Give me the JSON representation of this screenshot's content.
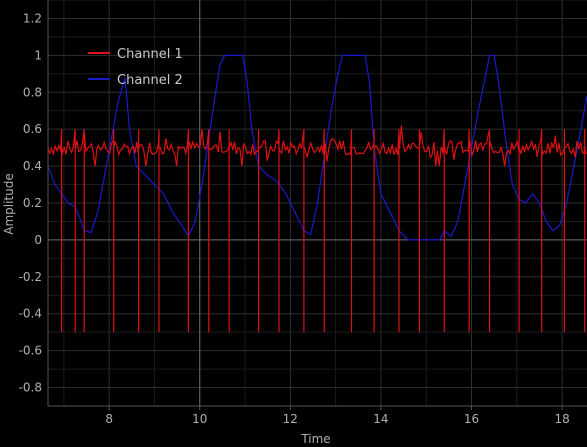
{
  "chart_data": {
    "type": "line",
    "title": "",
    "xlabel": "Time",
    "ylabel": "Amplitude",
    "xlim": [
      6.65,
      18.55
    ],
    "ylim": [
      -0.9,
      1.3
    ],
    "x_ticks": [
      8,
      10,
      12,
      14,
      16,
      18
    ],
    "x_tick_labels": [
      "8",
      "10",
      "12",
      "14",
      "16",
      "18"
    ],
    "y_ticks": [
      -0.8,
      -0.6,
      -0.4,
      -0.2,
      0,
      0.2,
      0.4,
      0.6,
      0.8,
      1,
      1.2
    ],
    "y_tick_labels": [
      "-0.8",
      "-0.6",
      "-0.4",
      "-0.2",
      "0",
      "0.2",
      "0.4",
      "0.6",
      "0.8",
      "1",
      "1.2"
    ],
    "grid": true,
    "highlight_lines": {
      "x": 10,
      "y": 0
    },
    "legend_position": "top-left",
    "colors": {
      "background": "#000000",
      "grid": "#2a2a2a",
      "highlight": "#6a6a6a",
      "text": "#b0b0b0"
    },
    "series": [
      {
        "name": "Channel 1",
        "color": "#dd1111",
        "baseline": 0.5,
        "noise_range": [
          0.4,
          0.62
        ],
        "spike_times": [
          6.95,
          7.25,
          7.45,
          8.1,
          8.65,
          9.1,
          9.75,
          10.2,
          10.65,
          11.3,
          11.75,
          12.3,
          12.75,
          13.35,
          13.85,
          14.4,
          14.85,
          15.4,
          15.95,
          16.4,
          17.05,
          17.55,
          18.05,
          18.5
        ],
        "spike_min": -0.5,
        "spike_max": 0.6
      },
      {
        "name": "Channel 2",
        "color": "#1a1acc",
        "points": [
          [
            6.65,
            0.4
          ],
          [
            6.8,
            0.3
          ],
          [
            6.95,
            0.25
          ],
          [
            7.1,
            0.2
          ],
          [
            7.25,
            0.18
          ],
          [
            7.35,
            0.12
          ],
          [
            7.45,
            0.05
          ],
          [
            7.6,
            0.04
          ],
          [
            7.75,
            0.15
          ],
          [
            7.9,
            0.35
          ],
          [
            8.05,
            0.55
          ],
          [
            8.2,
            0.75
          ],
          [
            8.35,
            0.88
          ],
          [
            8.45,
            0.6
          ],
          [
            8.6,
            0.4
          ],
          [
            8.8,
            0.35
          ],
          [
            9.0,
            0.3
          ],
          [
            9.2,
            0.25
          ],
          [
            9.4,
            0.15
          ],
          [
            9.6,
            0.08
          ],
          [
            9.75,
            0.02
          ],
          [
            9.9,
            0.1
          ],
          [
            10.05,
            0.3
          ],
          [
            10.2,
            0.55
          ],
          [
            10.35,
            0.8
          ],
          [
            10.45,
            0.95
          ],
          [
            10.55,
            1.0
          ],
          [
            10.95,
            1.0
          ],
          [
            11.05,
            0.85
          ],
          [
            11.15,
            0.6
          ],
          [
            11.3,
            0.4
          ],
          [
            11.5,
            0.35
          ],
          [
            11.7,
            0.32
          ],
          [
            11.9,
            0.25
          ],
          [
            12.1,
            0.15
          ],
          [
            12.3,
            0.05
          ],
          [
            12.45,
            0.03
          ],
          [
            12.6,
            0.2
          ],
          [
            12.75,
            0.45
          ],
          [
            12.9,
            0.7
          ],
          [
            13.05,
            0.9
          ],
          [
            13.15,
            1.0
          ],
          [
            13.65,
            1.0
          ],
          [
            13.75,
            0.85
          ],
          [
            13.85,
            0.5
          ],
          [
            14.0,
            0.25
          ],
          [
            14.2,
            0.15
          ],
          [
            14.4,
            0.05
          ],
          [
            14.6,
            0.0
          ],
          [
            15.0,
            0.0
          ],
          [
            15.3,
            0.0
          ],
          [
            15.4,
            0.05
          ],
          [
            15.55,
            0.02
          ],
          [
            15.7,
            0.1
          ],
          [
            15.85,
            0.3
          ],
          [
            16.0,
            0.5
          ],
          [
            16.15,
            0.7
          ],
          [
            16.3,
            0.88
          ],
          [
            16.4,
            1.0
          ],
          [
            16.5,
            1.0
          ],
          [
            16.6,
            0.85
          ],
          [
            16.75,
            0.55
          ],
          [
            16.9,
            0.3
          ],
          [
            17.05,
            0.22
          ],
          [
            17.2,
            0.2
          ],
          [
            17.35,
            0.25
          ],
          [
            17.5,
            0.2
          ],
          [
            17.65,
            0.1
          ],
          [
            17.8,
            0.05
          ],
          [
            17.95,
            0.08
          ],
          [
            18.1,
            0.2
          ],
          [
            18.3,
            0.45
          ],
          [
            18.45,
            0.65
          ],
          [
            18.55,
            0.78
          ]
        ]
      }
    ]
  }
}
